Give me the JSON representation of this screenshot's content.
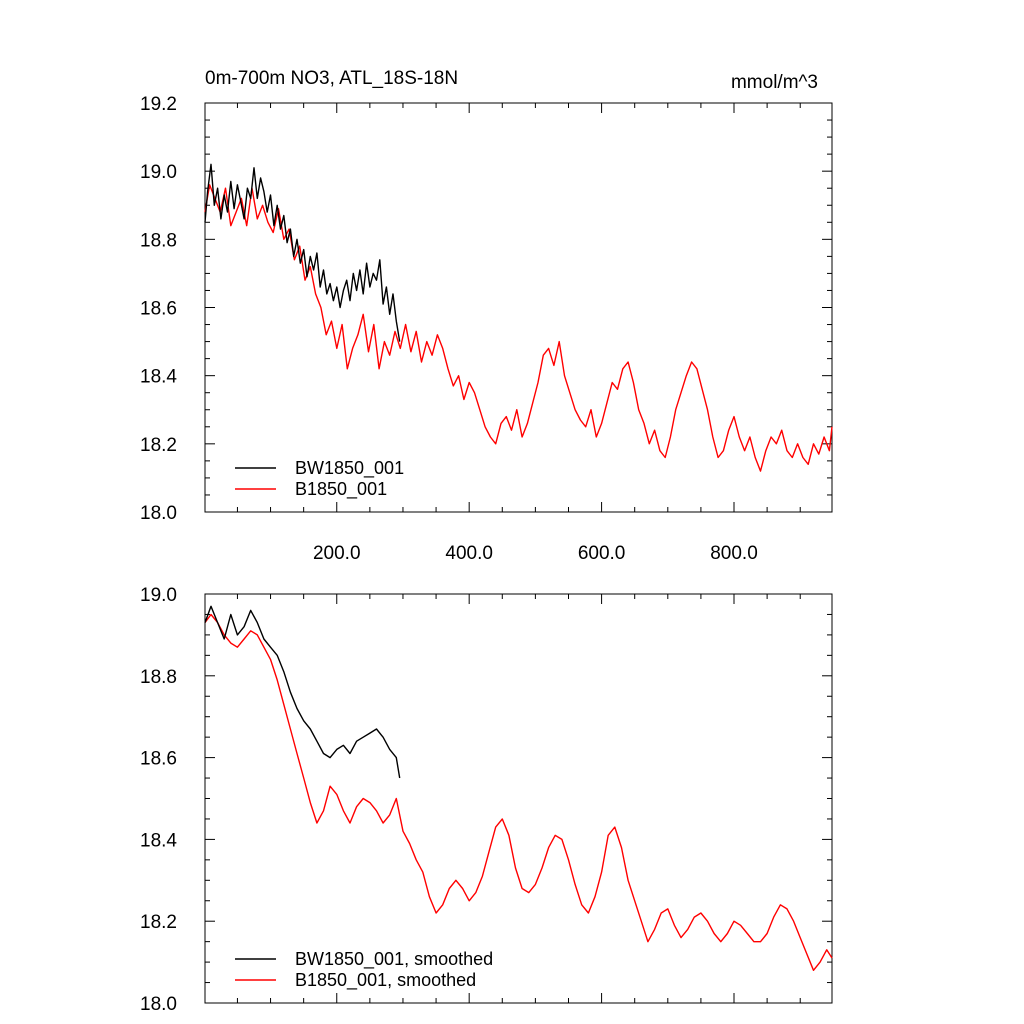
{
  "chart_data": [
    {
      "type": "line",
      "title": "0m-700m NO3, ATL_18S-18N",
      "units": "mmol/m^3",
      "xlim": [
        1,
        948
      ],
      "ylim": [
        18.0,
        19.2
      ],
      "xticks": [
        200,
        400,
        600,
        800
      ],
      "xtick_labels": [
        "200.0",
        "400.0",
        "600.0",
        "800.0"
      ],
      "yticks": [
        18.0,
        18.2,
        18.4,
        18.6,
        18.8,
        19.0,
        19.2
      ],
      "ytick_labels": [
        "18.0",
        "18.2",
        "18.4",
        "18.6",
        "18.8",
        "19.0",
        "19.2"
      ],
      "legend_position": "bottom-left",
      "series": [
        {
          "name": "BW1850_001",
          "color": "#000000",
          "x": [
            1,
            5,
            10,
            15,
            20,
            25,
            30,
            35,
            40,
            45,
            50,
            55,
            60,
            65,
            70,
            75,
            80,
            85,
            90,
            95,
            100,
            105,
            110,
            115,
            120,
            125,
            130,
            135,
            140,
            145,
            150,
            155,
            160,
            165,
            170,
            175,
            180,
            185,
            190,
            195,
            200,
            205,
            210,
            215,
            220,
            225,
            230,
            235,
            240,
            245,
            250,
            255,
            260,
            265,
            270,
            275,
            280,
            285,
            290,
            295
          ],
          "y": [
            18.85,
            18.94,
            19.02,
            18.9,
            18.95,
            18.86,
            18.93,
            18.88,
            18.97,
            18.89,
            18.96,
            18.91,
            18.86,
            18.95,
            18.92,
            19.01,
            18.92,
            18.98,
            18.94,
            18.88,
            18.93,
            18.84,
            18.9,
            18.83,
            18.87,
            18.79,
            18.83,
            18.75,
            18.8,
            18.73,
            18.77,
            18.69,
            18.75,
            18.71,
            18.76,
            18.66,
            18.71,
            18.64,
            18.67,
            18.62,
            18.66,
            18.6,
            18.65,
            18.68,
            18.62,
            18.7,
            18.65,
            18.71,
            18.64,
            18.73,
            18.66,
            18.7,
            18.68,
            18.74,
            18.61,
            18.66,
            18.58,
            18.64,
            18.56,
            18.5
          ]
        },
        {
          "name": "B1850_001",
          "color": "#ff0000",
          "x": [
            1,
            8,
            16,
            24,
            32,
            40,
            48,
            56,
            64,
            72,
            80,
            88,
            96,
            104,
            112,
            120,
            128,
            136,
            144,
            152,
            160,
            168,
            176,
            184,
            192,
            200,
            208,
            216,
            224,
            232,
            240,
            248,
            256,
            264,
            272,
            280,
            288,
            296,
            304,
            312,
            320,
            328,
            336,
            344,
            352,
            360,
            368,
            376,
            384,
            392,
            400,
            408,
            416,
            424,
            432,
            440,
            448,
            456,
            464,
            472,
            480,
            488,
            496,
            504,
            512,
            520,
            528,
            536,
            544,
            552,
            560,
            568,
            576,
            584,
            592,
            600,
            608,
            616,
            624,
            632,
            640,
            648,
            656,
            664,
            672,
            680,
            688,
            696,
            704,
            712,
            720,
            728,
            736,
            744,
            752,
            760,
            768,
            776,
            784,
            792,
            800,
            808,
            816,
            824,
            832,
            840,
            848,
            856,
            864,
            872,
            880,
            888,
            896,
            904,
            912,
            920,
            928,
            936,
            944,
            948
          ],
          "y": [
            18.88,
            18.96,
            18.92,
            18.88,
            18.95,
            18.84,
            18.88,
            18.92,
            18.84,
            18.95,
            18.86,
            18.9,
            18.85,
            18.82,
            18.89,
            18.8,
            18.83,
            18.74,
            18.78,
            18.68,
            18.72,
            18.64,
            18.6,
            18.52,
            18.56,
            18.48,
            18.55,
            18.42,
            18.48,
            18.52,
            18.58,
            18.47,
            18.55,
            18.42,
            18.5,
            18.46,
            18.53,
            18.48,
            18.55,
            18.47,
            18.53,
            18.44,
            18.5,
            18.46,
            18.52,
            18.48,
            18.42,
            18.37,
            18.4,
            18.33,
            18.38,
            18.35,
            18.3,
            18.25,
            18.22,
            18.2,
            18.26,
            18.28,
            18.24,
            18.3,
            18.22,
            18.26,
            18.32,
            18.38,
            18.46,
            18.48,
            18.43,
            18.5,
            18.4,
            18.35,
            18.3,
            18.27,
            18.25,
            18.3,
            18.22,
            18.26,
            18.32,
            18.38,
            18.36,
            18.42,
            18.44,
            18.38,
            18.3,
            18.26,
            18.2,
            18.24,
            18.18,
            18.16,
            18.22,
            18.3,
            18.35,
            18.4,
            18.44,
            18.42,
            18.36,
            18.3,
            18.22,
            18.16,
            18.18,
            18.24,
            18.28,
            18.22,
            18.18,
            18.22,
            18.16,
            18.12,
            18.18,
            18.22,
            18.2,
            18.24,
            18.18,
            18.16,
            18.2,
            18.16,
            18.14,
            18.2,
            18.17,
            18.22,
            18.18,
            18.25
          ]
        }
      ]
    },
    {
      "type": "line",
      "title": "",
      "xlim": [
        1,
        948
      ],
      "ylim": [
        18.0,
        19.0
      ],
      "xticks": [
        200,
        400,
        600,
        800
      ],
      "yticks": [
        18.0,
        18.2,
        18.4,
        18.6,
        18.8,
        19.0
      ],
      "ytick_labels": [
        "18.0",
        "18.2",
        "18.4",
        "18.6",
        "18.8",
        "19.0"
      ],
      "legend_position": "bottom-left",
      "series": [
        {
          "name": "BW1850_001, smoothed",
          "color": "#000000",
          "x": [
            1,
            10,
            20,
            30,
            40,
            50,
            60,
            70,
            80,
            90,
            100,
            110,
            120,
            130,
            140,
            150,
            160,
            170,
            180,
            190,
            200,
            210,
            220,
            230,
            240,
            250,
            260,
            270,
            280,
            290,
            295
          ],
          "y": [
            18.93,
            18.97,
            18.93,
            18.89,
            18.95,
            18.9,
            18.92,
            18.96,
            18.93,
            18.89,
            18.87,
            18.85,
            18.81,
            18.76,
            18.72,
            18.69,
            18.67,
            18.64,
            18.61,
            18.6,
            18.62,
            18.63,
            18.61,
            18.64,
            18.65,
            18.66,
            18.67,
            18.65,
            18.62,
            18.6,
            18.55
          ]
        },
        {
          "name": "B1850_001, smoothed",
          "color": "#ff0000",
          "x": [
            1,
            10,
            20,
            30,
            40,
            50,
            60,
            70,
            80,
            90,
            100,
            110,
            120,
            130,
            140,
            150,
            160,
            170,
            180,
            190,
            200,
            210,
            220,
            230,
            240,
            250,
            260,
            270,
            280,
            290,
            300,
            310,
            320,
            330,
            340,
            350,
            360,
            370,
            380,
            390,
            400,
            410,
            420,
            430,
            440,
            450,
            460,
            470,
            480,
            490,
            500,
            510,
            520,
            530,
            540,
            550,
            560,
            570,
            580,
            590,
            600,
            610,
            620,
            630,
            640,
            650,
            660,
            670,
            680,
            690,
            700,
            710,
            720,
            730,
            740,
            750,
            760,
            770,
            780,
            790,
            800,
            810,
            820,
            830,
            840,
            850,
            860,
            870,
            880,
            890,
            900,
            910,
            920,
            930,
            940,
            948
          ],
          "y": [
            18.93,
            18.95,
            18.93,
            18.9,
            18.88,
            18.87,
            18.89,
            18.91,
            18.9,
            18.87,
            18.84,
            18.79,
            18.73,
            18.67,
            18.61,
            18.55,
            18.49,
            18.44,
            18.47,
            18.53,
            18.51,
            18.47,
            18.44,
            18.48,
            18.5,
            18.49,
            18.47,
            18.44,
            18.46,
            18.5,
            18.42,
            18.39,
            18.35,
            18.32,
            18.26,
            18.22,
            18.24,
            18.28,
            18.3,
            18.28,
            18.25,
            18.27,
            18.31,
            18.37,
            18.43,
            18.45,
            18.41,
            18.33,
            18.28,
            18.27,
            18.29,
            18.33,
            18.38,
            18.41,
            18.4,
            18.35,
            18.29,
            18.24,
            18.22,
            18.26,
            18.32,
            18.41,
            18.43,
            18.38,
            18.3,
            18.25,
            18.2,
            18.15,
            18.18,
            18.22,
            18.23,
            18.19,
            18.16,
            18.18,
            18.21,
            18.22,
            18.2,
            18.17,
            18.15,
            18.17,
            18.2,
            18.19,
            18.17,
            18.15,
            18.15,
            18.17,
            18.21,
            18.24,
            18.23,
            18.2,
            18.16,
            18.12,
            18.08,
            18.1,
            18.13,
            18.11
          ]
        }
      ]
    }
  ]
}
